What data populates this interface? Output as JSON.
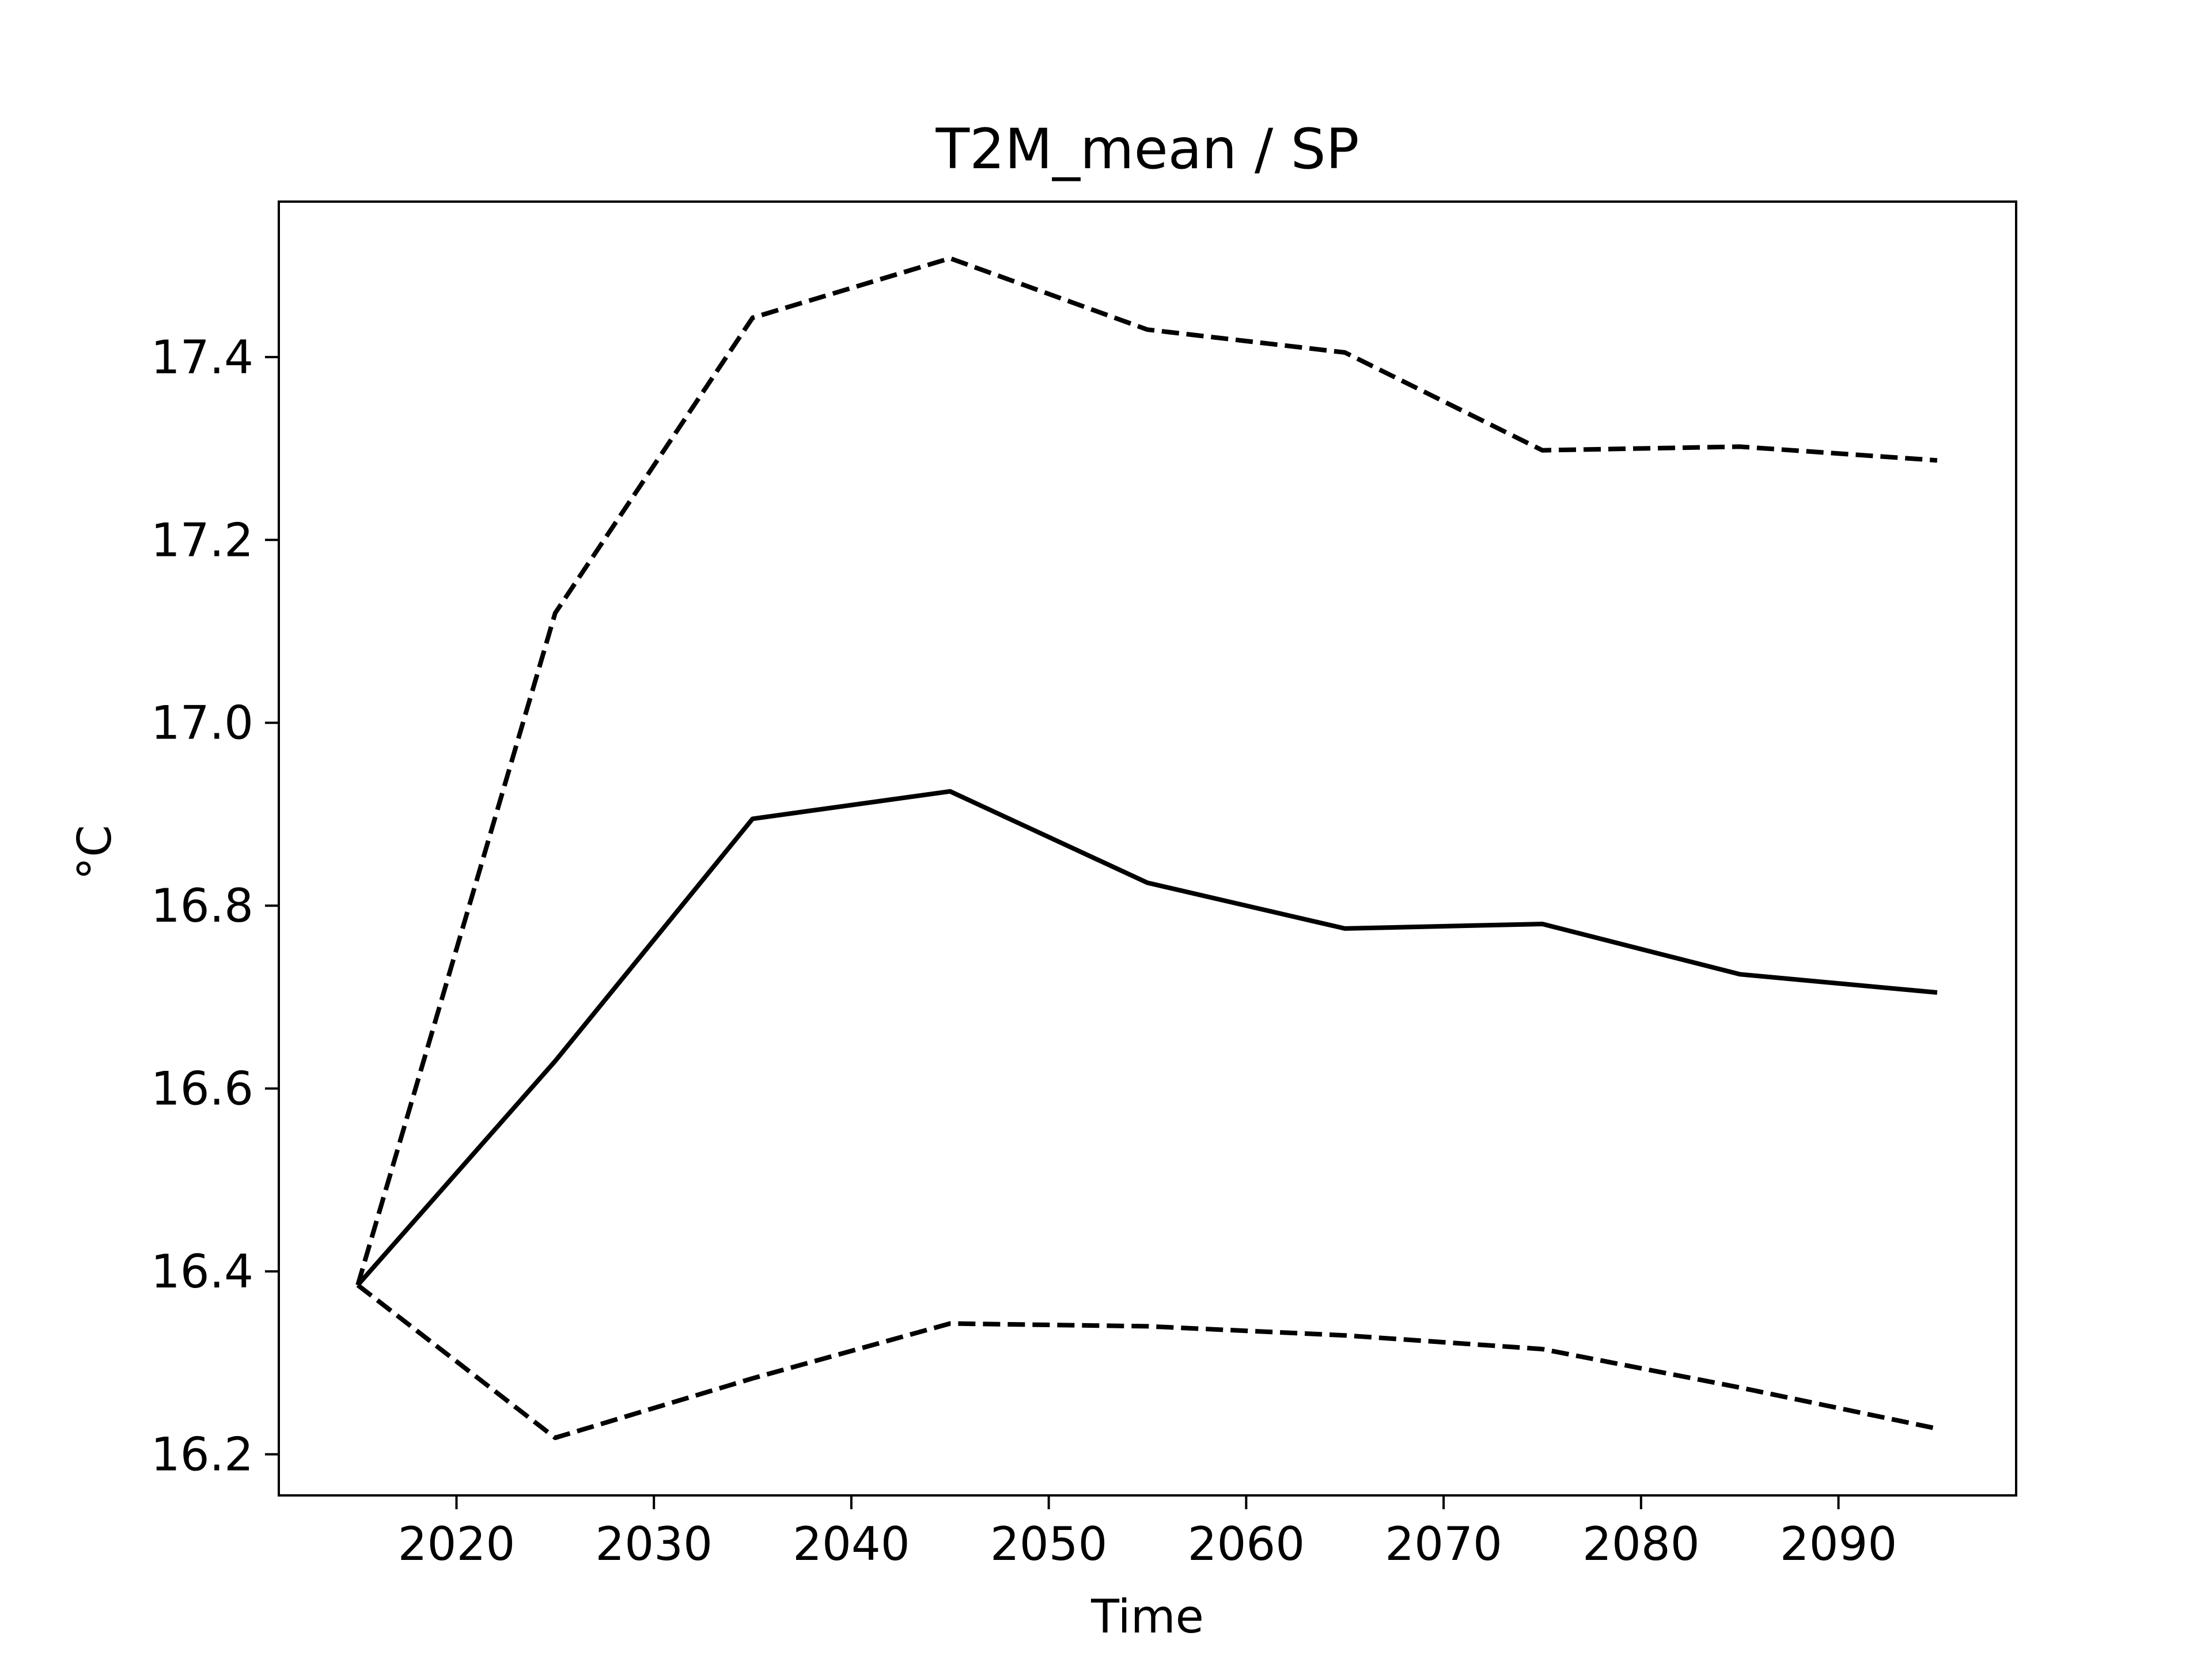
{
  "chart_data": {
    "type": "line",
    "title": "T2M_mean / SP",
    "xlabel": "Time",
    "ylabel": "°C",
    "xlim": [
      2011,
      2099
    ],
    "ylim": [
      16.155,
      17.57
    ],
    "xticks": [
      2020,
      2030,
      2040,
      2050,
      2060,
      2070,
      2080,
      2090
    ],
    "yticks": [
      16.2,
      16.4,
      16.6,
      16.8,
      17.0,
      17.2,
      17.4
    ],
    "ytick_labels": [
      "16.2",
      "16.4",
      "16.6",
      "16.8",
      "17.0",
      "17.2",
      "17.4"
    ],
    "grid": false,
    "legend": false,
    "x": [
      2015,
      2025,
      2035,
      2045,
      2055,
      2065,
      2075,
      2085,
      2095
    ],
    "series": [
      {
        "style": "solid",
        "color": "#000000",
        "values": [
          16.385,
          16.63,
          16.895,
          16.925,
          16.825,
          16.775,
          16.78,
          16.725,
          16.705
        ]
      },
      {
        "style": "dashed",
        "color": "#000000",
        "values": [
          16.385,
          17.12,
          17.443,
          17.508,
          17.43,
          17.405,
          17.298,
          17.302,
          17.287
        ]
      },
      {
        "style": "dashed",
        "color": "#000000",
        "values": [
          16.385,
          16.218,
          16.283,
          16.343,
          16.34,
          16.33,
          16.315,
          16.273,
          16.228
        ]
      }
    ]
  }
}
